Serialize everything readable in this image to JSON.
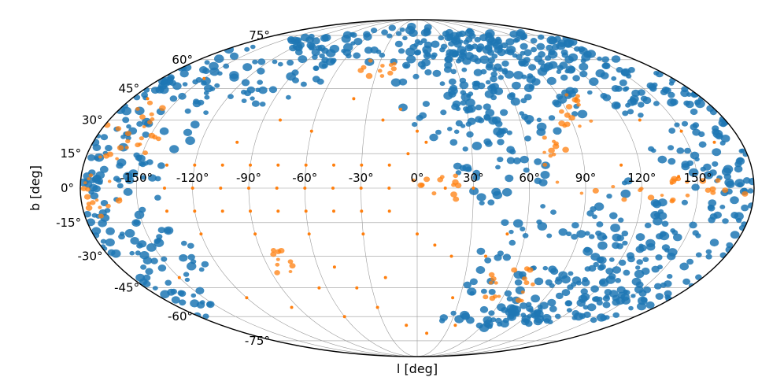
{
  "chart_data": {
    "type": "scatter",
    "projection": "mollweide",
    "xlabel": "l  [deg]",
    "ylabel": "b  [deg]",
    "xlim": [
      -180,
      180
    ],
    "ylim": [
      -90,
      90
    ],
    "grid": true,
    "x_ticks": [
      "-150°",
      "-120°",
      "-90°",
      "-60°",
      "-30°",
      "0°",
      "30°",
      "60°",
      "90°",
      "120°",
      "150°"
    ],
    "x_tick_values": [
      -150,
      -120,
      -90,
      -60,
      -30,
      0,
      30,
      60,
      90,
      120,
      150
    ],
    "y_ticks": [
      "75°",
      "60°",
      "45°",
      "30°",
      "15°",
      "0°",
      "-15°",
      "-30°",
      "-45°",
      "-60°",
      "-75°"
    ],
    "y_tick_values": [
      75,
      60,
      45,
      30,
      15,
      0,
      -15,
      -30,
      -45,
      -60,
      -75
    ],
    "colors": {
      "series_a": "#1f77b4",
      "series_b": "#ff7f0e",
      "grid": "#9a9a9a",
      "frame": "#000000"
    },
    "series": [
      {
        "color": "#1f77b4",
        "regions": [
          {
            "l": 150,
            "b": 55,
            "dl": 60,
            "db": 22
          },
          {
            "l": 60,
            "b": 45,
            "dl": 45,
            "db": 25
          },
          {
            "l": 20,
            "b": 45,
            "dl": 35,
            "db": 25
          },
          {
            "l": 45,
            "b": 20,
            "dl": 30,
            "db": 30
          },
          {
            "l": -10,
            "b": 70,
            "dl": 120,
            "db": 12
          },
          {
            "l": -120,
            "b": 55,
            "dl": 60,
            "db": 20
          },
          {
            "l": -160,
            "b": 25,
            "dl": 40,
            "db": 25
          },
          {
            "l": -165,
            "b": -5,
            "dl": 30,
            "db": 25
          },
          {
            "l": -160,
            "b": -30,
            "dl": 35,
            "db": 18
          },
          {
            "l": -170,
            "b": -50,
            "dl": 25,
            "db": 12
          },
          {
            "l": 90,
            "b": -35,
            "dl": 60,
            "db": 30
          },
          {
            "l": 140,
            "b": -20,
            "dl": 50,
            "db": 30
          },
          {
            "l": 120,
            "b": -50,
            "dl": 60,
            "db": 15
          },
          {
            "l": 160,
            "b": 30,
            "dl": 40,
            "db": 25
          },
          {
            "l": 170,
            "b": 5,
            "dl": 20,
            "db": 20
          },
          {
            "l": 100,
            "b": 65,
            "dl": 80,
            "db": 15
          },
          {
            "l": 60,
            "b": -60,
            "dl": 40,
            "db": 10
          }
        ]
      },
      {
        "color": "#ff7f0e",
        "regions": [
          {
            "l": -80,
            "b": -33,
            "dl": 12,
            "db": 6
          },
          {
            "l": 95,
            "b": 33,
            "dl": 14,
            "db": 10
          },
          {
            "l": 75,
            "b": 15,
            "dl": 8,
            "db": 9
          },
          {
            "l": 60,
            "b": -45,
            "dl": 20,
            "db": 10
          },
          {
            "l": 10,
            "b": 0,
            "dl": 15,
            "db": 8
          },
          {
            "l": -30,
            "b": 55,
            "dl": 15,
            "db": 6
          },
          {
            "l": -160,
            "b": 25,
            "dl": 20,
            "db": 15
          },
          {
            "l": 120,
            "b": 0,
            "dl": 50,
            "db": 6
          },
          {
            "l": -170,
            "b": 0,
            "dl": 15,
            "db": 15
          }
        ],
        "points": [
          [
            -135,
            0
          ],
          [
            -120,
            0
          ],
          [
            -105,
            0
          ],
          [
            -90,
            0
          ],
          [
            -75,
            0
          ],
          [
            -60,
            0
          ],
          [
            -45,
            0
          ],
          [
            -30,
            0
          ],
          [
            -15,
            0
          ],
          [
            15,
            0
          ],
          [
            30,
            0
          ],
          [
            -135,
            10
          ],
          [
            -120,
            10
          ],
          [
            -105,
            10
          ],
          [
            -90,
            10
          ],
          [
            -75,
            10
          ],
          [
            -60,
            10
          ],
          [
            -45,
            10
          ],
          [
            -30,
            10
          ],
          [
            -15,
            10
          ],
          [
            -135,
            -10
          ],
          [
            -120,
            -10
          ],
          [
            -105,
            -10
          ],
          [
            -90,
            -10
          ],
          [
            -75,
            -10
          ],
          [
            -60,
            -10
          ],
          [
            -45,
            -10
          ],
          [
            -30,
            -10
          ],
          [
            -15,
            -10
          ],
          [
            -120,
            -20
          ],
          [
            -90,
            -20
          ],
          [
            -60,
            -20
          ],
          [
            -30,
            -20
          ],
          [
            0,
            -20
          ],
          [
            10,
            -25
          ],
          [
            20,
            -30
          ],
          [
            -100,
            20
          ],
          [
            -80,
            30
          ],
          [
            -60,
            25
          ],
          [
            -40,
            40
          ],
          [
            -20,
            30
          ],
          [
            0,
            25
          ],
          [
            -5,
            15
          ],
          [
            5,
            20
          ],
          [
            -10,
            35
          ],
          [
            -150,
            -40
          ],
          [
            -120,
            -50
          ],
          [
            -95,
            -55
          ],
          [
            -60,
            -60
          ],
          [
            -30,
            -55
          ],
          [
            -10,
            -65
          ],
          [
            10,
            -70
          ],
          [
            35,
            -65
          ],
          [
            -40,
            -45
          ],
          [
            -50,
            -35
          ],
          [
            -65,
            -45
          ],
          [
            -20,
            -40
          ],
          [
            25,
            -50
          ],
          [
            40,
            -30
          ],
          [
            50,
            -20
          ],
          [
            -170,
            40
          ],
          [
            -150,
            50
          ],
          [
            100,
            40
          ],
          [
            130,
            30
          ],
          [
            150,
            25
          ],
          [
            165,
            20
          ],
          [
            110,
            10
          ],
          [
            140,
            5
          ]
        ]
      }
    ]
  }
}
